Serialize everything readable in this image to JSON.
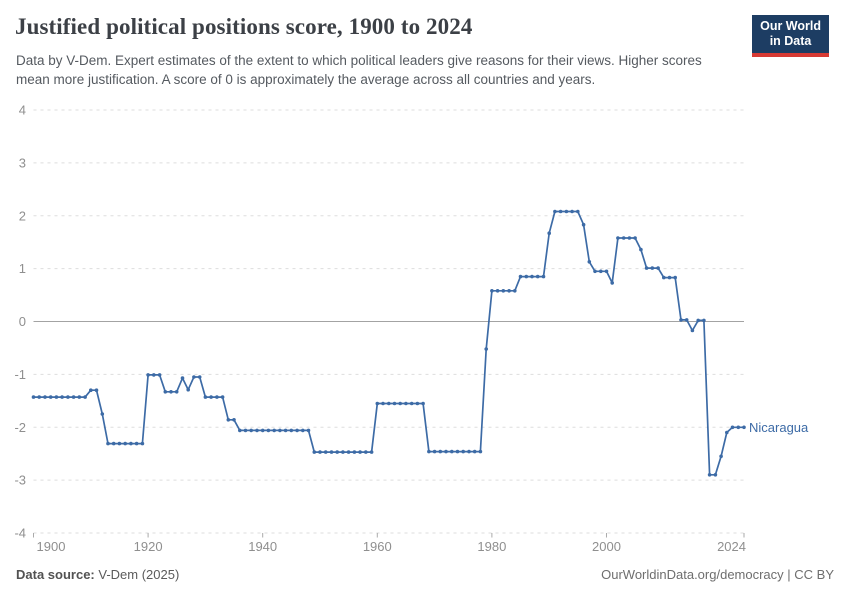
{
  "header": {
    "title": "Justified political positions score, 1900 to 2024",
    "subtitle": "Data by V-Dem. Expert estimates of the extent to which political leaders give reasons for their views. Higher scores mean more justification. A score of 0 is approximately the average across all countries and years.",
    "logo": {
      "line1": "Our World",
      "line2": "in Data"
    }
  },
  "footer": {
    "source_label": "Data source:",
    "source_value": " V-Dem (2025)",
    "attribution": "OurWorldinData.org/democracy | CC BY"
  },
  "colors": {
    "line": "#3d6ba6",
    "entity_label": "#3d6ba6",
    "gridline": "#dddddd",
    "zero_line": "#a3a3a3",
    "axis_text": "#8f8f8f",
    "tick_mark": "#aaaaaa",
    "logo_bg": "#1d3d63",
    "logo_red": "#d73a34"
  },
  "chart_data": {
    "type": "line",
    "title": "Justified political positions score, 1900 to 2024",
    "xlabel": "",
    "ylabel": "",
    "xlim": [
      1900,
      2024
    ],
    "ylim": [
      -4,
      4
    ],
    "yticks": [
      4,
      3,
      2,
      1,
      0,
      -1,
      -2,
      -3,
      -4
    ],
    "xticks": [
      1900,
      1920,
      1940,
      1960,
      1980,
      2000,
      2024
    ],
    "grid": "horizontal-dashed, zero line solid",
    "legend_position": "line-end-label",
    "x": [
      1900,
      1901,
      1902,
      1903,
      1904,
      1905,
      1906,
      1907,
      1908,
      1909,
      1910,
      1911,
      1912,
      1913,
      1914,
      1915,
      1916,
      1917,
      1918,
      1919,
      1920,
      1921,
      1922,
      1923,
      1924,
      1925,
      1926,
      1927,
      1928,
      1929,
      1930,
      1931,
      1932,
      1933,
      1934,
      1935,
      1936,
      1937,
      1938,
      1939,
      1940,
      1941,
      1942,
      1943,
      1944,
      1945,
      1946,
      1947,
      1948,
      1949,
      1950,
      1951,
      1952,
      1953,
      1954,
      1955,
      1956,
      1957,
      1958,
      1959,
      1960,
      1961,
      1962,
      1963,
      1964,
      1965,
      1966,
      1967,
      1968,
      1969,
      1970,
      1971,
      1972,
      1973,
      1974,
      1975,
      1976,
      1977,
      1978,
      1979,
      1980,
      1981,
      1982,
      1983,
      1984,
      1985,
      1986,
      1987,
      1988,
      1989,
      1990,
      1991,
      1992,
      1993,
      1994,
      1995,
      1996,
      1997,
      1998,
      1999,
      2000,
      2001,
      2002,
      2003,
      2004,
      2005,
      2006,
      2007,
      2008,
      2009,
      2010,
      2011,
      2012,
      2013,
      2014,
      2015,
      2016,
      2017,
      2018,
      2019,
      2020,
      2021,
      2022,
      2023,
      2024
    ],
    "series": [
      {
        "name": "Nicaragua",
        "values": [
          -1.43,
          -1.43,
          -1.43,
          -1.43,
          -1.43,
          -1.43,
          -1.43,
          -1.43,
          -1.43,
          -1.43,
          -1.3,
          -1.3,
          -1.75,
          -2.31,
          -2.31,
          -2.31,
          -2.31,
          -2.31,
          -2.31,
          -2.31,
          -1.01,
          -1.01,
          -1.01,
          -1.33,
          -1.33,
          -1.33,
          -1.07,
          -1.29,
          -1.05,
          -1.05,
          -1.43,
          -1.43,
          -1.43,
          -1.43,
          -1.86,
          -1.86,
          -2.06,
          -2.06,
          -2.06,
          -2.06,
          -2.06,
          -2.06,
          -2.06,
          -2.06,
          -2.06,
          -2.06,
          -2.06,
          -2.06,
          -2.06,
          -2.47,
          -2.47,
          -2.47,
          -2.47,
          -2.47,
          -2.47,
          -2.47,
          -2.47,
          -2.47,
          -2.47,
          -2.47,
          -1.55,
          -1.55,
          -1.55,
          -1.55,
          -1.55,
          -1.55,
          -1.55,
          -1.55,
          -1.55,
          -2.46,
          -2.46,
          -2.46,
          -2.46,
          -2.46,
          -2.46,
          -2.46,
          -2.46,
          -2.46,
          -2.46,
          -0.52,
          0.58,
          0.58,
          0.58,
          0.58,
          0.58,
          0.85,
          0.85,
          0.85,
          0.85,
          0.85,
          1.67,
          2.08,
          2.08,
          2.08,
          2.08,
          2.08,
          1.83,
          1.13,
          0.95,
          0.95,
          0.95,
          0.73,
          1.58,
          1.58,
          1.58,
          1.58,
          1.36,
          1.01,
          1.01,
          1.01,
          0.83,
          0.83,
          0.83,
          0.03,
          0.03,
          -0.17,
          0.02,
          0.02,
          -2.9,
          -2.9,
          -2.55,
          -2.1,
          -2.0,
          -2.0,
          -2.0
        ]
      }
    ]
  }
}
